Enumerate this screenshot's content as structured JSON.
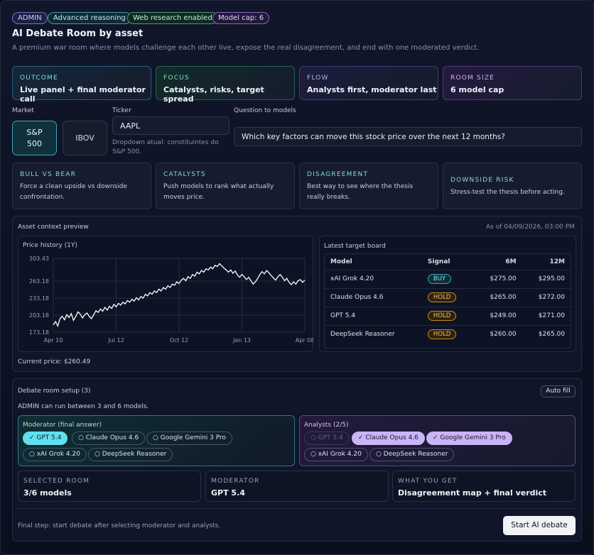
{
  "badges": [
    {
      "label": "ADMIN"
    },
    {
      "label": "Advanced reasoning"
    },
    {
      "label": "Web research enabled"
    },
    {
      "label": "Model cap: 6"
    }
  ],
  "header": {
    "title": "AI Debate Room by asset",
    "subtitle": "A premium war room where models challenge each other live, expose the real disagreement, and end with one moderated verdict."
  },
  "summary_cards": [
    {
      "key": "OUTCOME",
      "value": "Live panel + final moderator call"
    },
    {
      "key": "FOCUS",
      "value": "Catalysts, risks, target spread"
    },
    {
      "key": "FLOW",
      "value": "Analysts first, moderator last"
    },
    {
      "key": "ROOM SIZE",
      "value": "6 model cap"
    }
  ],
  "form": {
    "market_label": "Market",
    "markets": [
      "S&P\n500",
      "IBOV"
    ],
    "market_selected": "S&P 500",
    "ticker_label": "Ticker",
    "ticker_value": "AAPL",
    "ticker_hint": "Dropdown atual: constituintes do S&P 500.",
    "question_label": "Question to models",
    "question_value": "Which key factors can move this stock price over the next 12 months?"
  },
  "presets": [
    {
      "key": "BULL VS BEAR",
      "desc": "Force a clean upside vs downside confrontation."
    },
    {
      "key": "CATALYSTS",
      "desc": "Push models to rank what actually moves price."
    },
    {
      "key": "DISAGREEMENT",
      "desc": "Best way to see where the thesis really breaks."
    },
    {
      "key": "DOWNSIDE RISK",
      "desc": "Stress-test the thesis before acting."
    }
  ],
  "context": {
    "title": "Asset context preview",
    "as_of": "As of 04/09/2026, 03:00 PM",
    "current_price": "Current price: $260.49"
  },
  "chart_data": {
    "type": "line",
    "title": "Price history (1Y)",
    "ylim": [
      173.18,
      303.43
    ],
    "yticks": [
      "303.43",
      "263.18",
      "233.18",
      "203.18",
      "173.18"
    ],
    "xticks": [
      "Apr 10",
      "Jul 12",
      "Oct 12",
      "Jan 13",
      "Apr 08"
    ],
    "values": [
      186,
      192,
      184,
      197,
      201,
      195,
      204,
      199,
      206,
      194,
      201,
      209,
      205,
      198,
      204,
      207,
      201,
      197,
      204,
      211,
      208,
      214,
      210,
      217,
      212,
      219,
      215,
      222,
      218,
      224,
      221,
      226,
      223,
      229,
      226,
      231,
      228,
      234,
      230,
      236,
      233,
      240,
      237,
      243,
      240,
      246,
      243,
      249,
      246,
      252,
      249,
      255,
      252,
      258,
      256,
      262,
      259,
      265,
      268,
      264,
      271,
      268,
      275,
      272,
      279,
      276,
      282,
      279,
      285,
      283,
      288,
      285,
      291,
      289,
      294,
      290,
      286,
      283,
      279,
      283,
      277,
      281,
      274,
      270,
      275,
      271,
      266,
      270,
      264,
      258,
      262,
      268,
      275,
      280,
      276,
      282,
      278,
      273,
      269,
      265,
      271,
      275,
      270,
      264,
      268,
      261,
      257,
      262,
      258,
      264,
      266,
      261,
      265
    ]
  },
  "board": {
    "title": "Latest target board",
    "headers": [
      "Model",
      "Signal",
      "6M",
      "12M"
    ],
    "rows": [
      {
        "model": "xAI Grok 4.20",
        "signal": "BUY",
        "m6": "$275.00",
        "m12": "$295.00"
      },
      {
        "model": "Claude Opus 4.6",
        "signal": "HOLD",
        "m6": "$265.00",
        "m12": "$272.00"
      },
      {
        "model": "GPT 5.4",
        "signal": "HOLD",
        "m6": "$249.00",
        "m12": "$271.00"
      },
      {
        "model": "DeepSeek Reasoner",
        "signal": "HOLD",
        "m6": "$260.00",
        "m12": "$265.00"
      }
    ]
  },
  "setup": {
    "title": "Debate room setup (3)",
    "auto_fill": "Auto fill",
    "admin_note": "ADMIN can run between 3 and 6 models.",
    "moderator_title": "Moderator (final answer)",
    "moderator_chips": [
      {
        "label": "✓ GPT 5.4",
        "state": "selected"
      },
      {
        "label": "○ Claude Opus 4.6",
        "state": "off"
      },
      {
        "label": "○ Google Gemini 3 Pro",
        "state": "off"
      },
      {
        "label": "○ xAI Grok 4.20",
        "state": "off"
      },
      {
        "label": "○ DeepSeek Reasoner",
        "state": "off"
      }
    ],
    "analysts_title": "Analysts (2/5)",
    "analyst_chips": [
      {
        "label": "○ GPT 5.4",
        "state": "disabled"
      },
      {
        "label": "✓ Claude Opus 4.6",
        "state": "selected"
      },
      {
        "label": "✓ Google Gemini 3 Pro",
        "state": "selected"
      },
      {
        "label": "○ xAI Grok 4.20",
        "state": "off"
      },
      {
        "label": "○ DeepSeek Reasoner",
        "state": "off"
      }
    ],
    "stats": [
      {
        "key": "SELECTED ROOM",
        "value": "3/6 models"
      },
      {
        "key": "MODERATOR",
        "value": "GPT 5.4"
      },
      {
        "key": "WHAT YOU GET",
        "value": "Disagreement map + final verdict"
      }
    ],
    "final_note": "Final step: start debate after selecting moderator and analysts.",
    "start_label": "Start AI debate"
  },
  "colors": {
    "accent_cyan": "#4fd6e6",
    "accent_green": "#5fd6a8",
    "accent_purple": "#b99cf0",
    "hold": "#e0a53a",
    "buy": "#4fc9e0"
  }
}
